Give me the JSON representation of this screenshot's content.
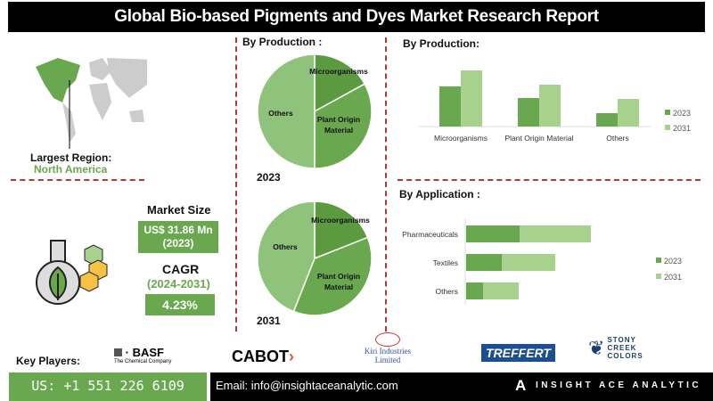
{
  "title": "Global Bio-based Pigments and Dyes Market Research Report",
  "region": {
    "label": "Largest Region:",
    "value": "North America"
  },
  "market": {
    "size_label": "Market Size",
    "size_value": "US$ 31.86 Mn",
    "size_year": "(2023)",
    "cagr_label": "CAGR",
    "cagr_period": "(2024-2031)",
    "cagr_value": "4.23%"
  },
  "colors": {
    "dark": "#5b9a3f",
    "mid": "#6aa84f",
    "light": "#a9d18e",
    "pie_light": "#8fc27a",
    "red": "#b03a3a"
  },
  "chart_data": [
    {
      "type": "pie",
      "title": "By Production :",
      "year": "2023",
      "labels": [
        "Microorganisms",
        "Plant Origin Material",
        "Others"
      ],
      "values": [
        17,
        33,
        50
      ]
    },
    {
      "type": "pie",
      "year": "2031",
      "labels": [
        "Microorganisms",
        "Plant Origin Material",
        "Others"
      ],
      "values": [
        19,
        37,
        44
      ]
    },
    {
      "type": "bar",
      "title": "By Production:",
      "categories": [
        "Microorganisms",
        "Plant Origin Material",
        "Others"
      ],
      "series": [
        {
          "name": "2023",
          "values": [
            45,
            32,
            15
          ]
        },
        {
          "name": "2031",
          "values": [
            63,
            47,
            31
          ]
        }
      ]
    },
    {
      "type": "bar",
      "orientation": "horizontal",
      "stacked": true,
      "title": "By Application :",
      "categories": [
        "Pharmaceuticals",
        "Textiles",
        "Others"
      ],
      "series": [
        {
          "name": "2023",
          "values": [
            60,
            40,
            19
          ]
        },
        {
          "name": "2031",
          "values": [
            80,
            60,
            40
          ]
        }
      ]
    }
  ],
  "key_players": {
    "label": "Key Players:",
    "companies": [
      "BASF",
      "The Chemical Company",
      "CABOT",
      "Kiri Industries Limited",
      "TREFFERT",
      "STONY",
      "CREEK",
      "COLORS"
    ]
  },
  "footer": {
    "phone": "US: +1 551 226 6109",
    "email": "Email: info@insightaceanalytic.com",
    "brand": "INSIGHT ACE ANALYTIC"
  }
}
